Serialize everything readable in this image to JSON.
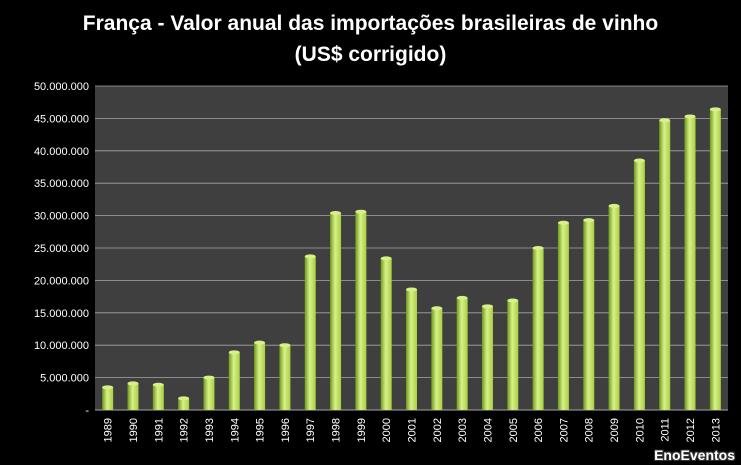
{
  "chart_data": {
    "type": "bar",
    "title_line1": "França - Valor anual das importações  brasileiras de vinho",
    "title_line2": "(US$ corrigido)",
    "xlabel": "",
    "ylabel": "",
    "ylim": [
      0,
      50000000
    ],
    "grid": true,
    "y_tick_values": [
      0,
      5000000,
      10000000,
      15000000,
      20000000,
      25000000,
      30000000,
      35000000,
      40000000,
      45000000,
      50000000
    ],
    "y_tick_labels": [
      "-",
      "5.000.000",
      "10.000.000",
      "15.000.000",
      "20.000.000",
      "25.000.000",
      "30.000.000",
      "35.000.000",
      "40.000.000",
      "45.000.000",
      "50.000.000"
    ],
    "categories": [
      "1989",
      "1990",
      "1991",
      "1992",
      "1993",
      "1994",
      "1995",
      "1996",
      "1997",
      "1998",
      "1999",
      "2000",
      "2001",
      "2002",
      "2003",
      "2004",
      "2005",
      "2006",
      "2007",
      "2008",
      "2009",
      "2010",
      "2011",
      "2012",
      "2013"
    ],
    "values": [
      3500000,
      4100000,
      3900000,
      1800000,
      5000000,
      8900000,
      10400000,
      10000000,
      23700000,
      30400000,
      30600000,
      23400000,
      18600000,
      15700000,
      17300000,
      16000000,
      16900000,
      25000000,
      28900000,
      29300000,
      31500000,
      38500000,
      44700000,
      45300000,
      46400000
    ],
    "colors": {
      "plot_background": "#3f3f3f",
      "gridline": "#a6a6a6",
      "bar_light": "#d9f08a",
      "bar_mid": "#a8d040",
      "bar_dark": "#6e9a1a"
    }
  },
  "watermark": "EnoEventos"
}
